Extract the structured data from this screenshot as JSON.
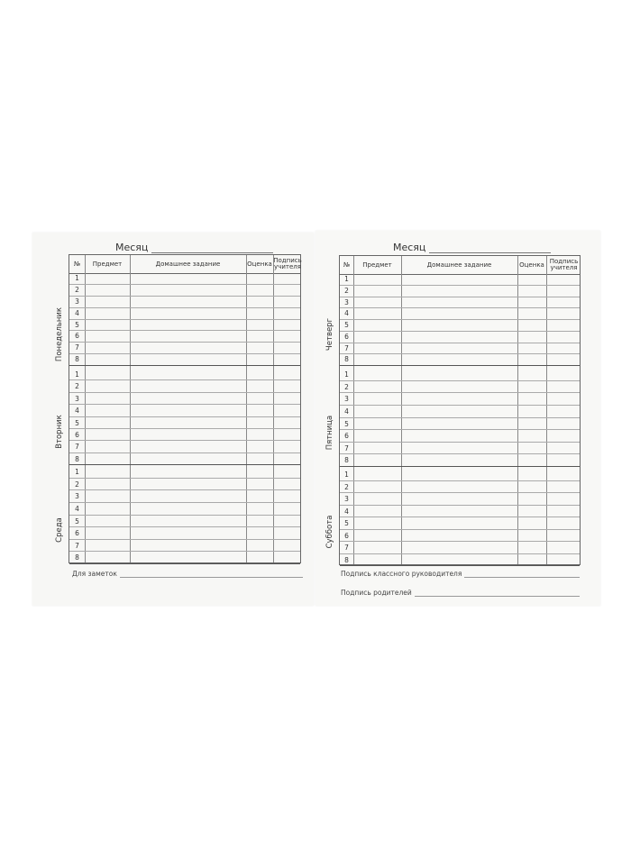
{
  "month_label": "Месяц",
  "headers": {
    "num": "№",
    "subject": "Предмет",
    "homework": "Домашнее задание",
    "grade": "Оценка",
    "signature": "Подпись учителя"
  },
  "row_numbers": [
    "1",
    "2",
    "3",
    "4",
    "5",
    "6",
    "7",
    "8"
  ],
  "left_page": {
    "days": [
      "Понедельник",
      "Вторник",
      "Среда"
    ],
    "footer": [
      "Для заметок"
    ]
  },
  "right_page": {
    "days": [
      "Четверг",
      "Пятница",
      "Суббота"
    ],
    "footer": [
      "Подпись классного руководителя",
      "Подпись родителей"
    ]
  }
}
